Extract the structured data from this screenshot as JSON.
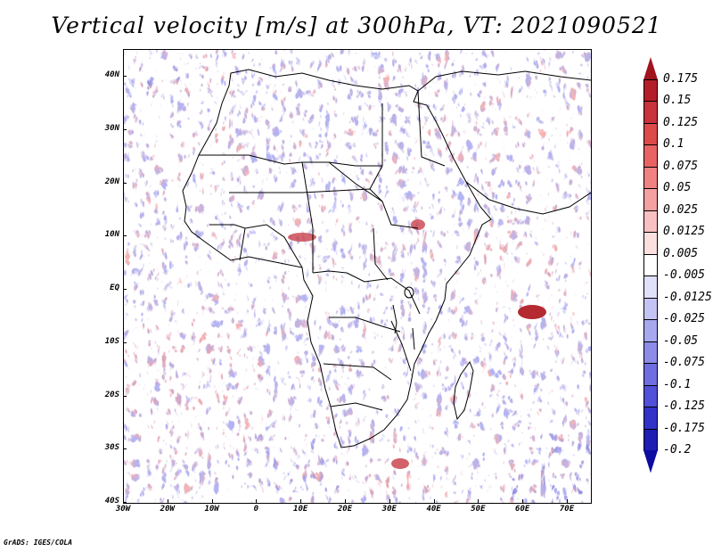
{
  "title": "Vertical velocity [m/s] at 300hPa, VT: 2021090521",
  "footer": "GrADS: IGES/COLA",
  "lat_labels": [
    "40N",
    "30N",
    "20N",
    "10N",
    "EQ",
    "10S",
    "20S",
    "30S",
    "40S"
  ],
  "lon_labels": [
    "30W",
    "20W",
    "10W",
    "0",
    "10E",
    "20E",
    "30E",
    "40E",
    "50E",
    "60E",
    "70E"
  ],
  "colorbar": {
    "labels": [
      "0.175",
      "0.15",
      "0.125",
      "0.1",
      "0.075",
      "0.05",
      "0.025",
      "0.0125",
      "0.005",
      "-0.005",
      "-0.0125",
      "-0.025",
      "-0.05",
      "-0.075",
      "-0.1",
      "-0.125",
      "-0.175",
      "-0.2"
    ],
    "colors": [
      "#a0141e",
      "#b41e28",
      "#c8323a",
      "#dc4a4a",
      "#e86464",
      "#f08282",
      "#f4a0a0",
      "#f8c0c0",
      "#fce0e0",
      "#ffffff",
      "#e0e0f8",
      "#c4c4f4",
      "#a8a8ee",
      "#8c8ce8",
      "#6e6ee0",
      "#5050d8",
      "#3232c8",
      "#1e1eb4",
      "#0c0ca0"
    ]
  }
}
